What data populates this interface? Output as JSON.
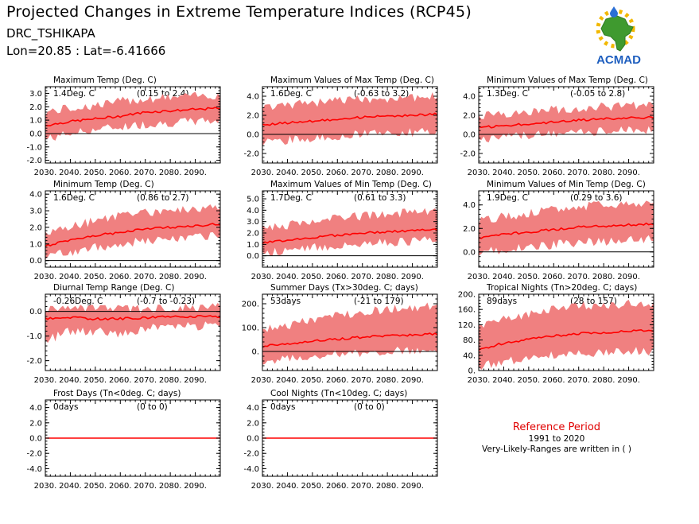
{
  "header": {
    "title": "Projected Changes in Extreme Temperature Indices (RCP45)",
    "location": "DRC_TSHIKAPA",
    "coordinates": "Lon=20.85 : Lat=-6.41666"
  },
  "logo": {
    "text": "ACMAD",
    "icon": "africa-map-logo"
  },
  "reference": {
    "title": "Reference Period",
    "years": "1991 to 2020",
    "note": "Very-Likely-Ranges are written in ( )"
  },
  "colors": {
    "band": "#f08080",
    "line": "#ff0000",
    "zero": "#000000",
    "ref_title": "#e00000"
  },
  "chart_data": [
    {
      "type": "area",
      "title": "Maximum Temp (Deg. C)",
      "summary": "1.4Deg. C",
      "range": "(0.15 to 2.4)",
      "xlim": [
        2030,
        2100
      ],
      "ylim": [
        -2.2,
        3.5
      ],
      "yticks": [
        -2.0,
        -1.0,
        0.0,
        1.0,
        2.0,
        3.0
      ],
      "yticklabels": [
        "-2.0",
        "-1.0",
        "0.0",
        "1.0",
        "2.0",
        "3.0"
      ],
      "x": [
        2030,
        2040,
        2050,
        2060,
        2070,
        2080,
        2090,
        2100
      ],
      "median": [
        0.6,
        0.9,
        1.1,
        1.3,
        1.6,
        1.7,
        1.8,
        1.9
      ],
      "low": [
        -0.4,
        0.0,
        0.3,
        0.5,
        0.7,
        0.8,
        0.9,
        1.0
      ],
      "high": [
        1.6,
        1.9,
        2.1,
        2.4,
        2.6,
        2.7,
        2.8,
        2.9
      ]
    },
    {
      "type": "area",
      "title": "Maximum Values of Max Temp (Deg. C)",
      "summary": "1.6Deg. C",
      "range": "(-0.63 to 3.2)",
      "xlim": [
        2030,
        2100
      ],
      "ylim": [
        -3.0,
        5.0
      ],
      "yticks": [
        -2.0,
        0.0,
        2.0,
        4.0
      ],
      "yticklabels": [
        "-2.0",
        "0.0",
        "2.0",
        "4.0"
      ],
      "x": [
        2030,
        2040,
        2050,
        2060,
        2070,
        2080,
        2090,
        2100
      ],
      "median": [
        1.0,
        1.2,
        1.4,
        1.6,
        1.8,
        1.9,
        2.0,
        2.1
      ],
      "low": [
        -0.8,
        -0.6,
        -0.4,
        -0.2,
        0.0,
        0.1,
        0.2,
        0.3
      ],
      "high": [
        2.8,
        3.0,
        3.3,
        3.5,
        3.7,
        3.8,
        3.9,
        4.0
      ]
    },
    {
      "type": "area",
      "title": "Minimum Values of Max Temp (Deg. C)",
      "summary": "1.3Deg. C",
      "range": "(-0.05 to 2.8)",
      "xlim": [
        2030,
        2100
      ],
      "ylim": [
        -3.0,
        5.0
      ],
      "yticks": [
        -2.0,
        0.0,
        2.0,
        4.0
      ],
      "yticklabels": [
        "-2.0",
        "0.0",
        "2.0",
        "4.0"
      ],
      "x": [
        2030,
        2040,
        2050,
        2060,
        2070,
        2080,
        2090,
        2100
      ],
      "median": [
        0.7,
        0.9,
        1.1,
        1.3,
        1.5,
        1.6,
        1.7,
        1.8
      ],
      "low": [
        -0.5,
        -0.3,
        -0.1,
        0.1,
        0.2,
        0.3,
        0.4,
        0.5
      ],
      "high": [
        2.0,
        2.2,
        2.4,
        2.6,
        2.8,
        2.9,
        3.0,
        3.1
      ]
    },
    {
      "type": "area",
      "title": "Minimum Temp (Deg. C)",
      "summary": "1.6Deg. C",
      "range": "(0.86 to 2.7)",
      "xlim": [
        2030,
        2100
      ],
      "ylim": [
        -0.4,
        4.2
      ],
      "yticks": [
        0.0,
        1.0,
        2.0,
        3.0,
        4.0
      ],
      "yticklabels": [
        "0.0",
        "1.0",
        "2.0",
        "3.0",
        "4.0"
      ],
      "x": [
        2030,
        2040,
        2050,
        2060,
        2070,
        2080,
        2090,
        2100
      ],
      "median": [
        0.9,
        1.2,
        1.5,
        1.7,
        1.9,
        2.0,
        2.1,
        2.2
      ],
      "low": [
        0.3,
        0.5,
        0.8,
        1.0,
        1.2,
        1.3,
        1.4,
        1.5
      ],
      "high": [
        1.6,
        2.0,
        2.4,
        2.7,
        2.9,
        3.0,
        3.1,
        3.2
      ]
    },
    {
      "type": "area",
      "title": "Maximum Values of Min Temp (Deg. C)",
      "summary": "1.7Deg. C",
      "range": "(0.61 to 3.3)",
      "xlim": [
        2030,
        2100
      ],
      "ylim": [
        -1.0,
        5.7
      ],
      "yticks": [
        0.0,
        1.0,
        2.0,
        3.0,
        4.0,
        5.0
      ],
      "yticklabels": [
        "0.0",
        "1.0",
        "2.0",
        "3.0",
        "4.0",
        "5.0"
      ],
      "x": [
        2030,
        2040,
        2050,
        2060,
        2070,
        2080,
        2090,
        2100
      ],
      "median": [
        1.1,
        1.4,
        1.6,
        1.8,
        2.0,
        2.1,
        2.2,
        2.3
      ],
      "low": [
        0.3,
        0.5,
        0.7,
        0.9,
        1.1,
        1.2,
        1.3,
        1.4
      ],
      "high": [
        2.3,
        2.7,
        3.0,
        3.3,
        3.5,
        3.7,
        3.8,
        3.9
      ]
    },
    {
      "type": "area",
      "title": "Minimum Values of Min Temp (Deg. C)",
      "summary": "1.9Deg. C",
      "range": "(0.29 to 3.6)",
      "xlim": [
        2030,
        2100
      ],
      "ylim": [
        -1.3,
        5.2
      ],
      "yticks": [
        0.0,
        2.0,
        4.0
      ],
      "yticklabels": [
        "0.0",
        "2.0",
        "4.0"
      ],
      "x": [
        2030,
        2040,
        2050,
        2060,
        2070,
        2080,
        2090,
        2100
      ],
      "median": [
        1.2,
        1.5,
        1.7,
        1.9,
        2.1,
        2.2,
        2.3,
        2.4
      ],
      "low": [
        0.0,
        0.2,
        0.4,
        0.6,
        0.8,
        0.9,
        1.0,
        1.1
      ],
      "high": [
        2.6,
        3.0,
        3.3,
        3.6,
        3.8,
        4.0,
        4.1,
        4.2
      ]
    },
    {
      "type": "area",
      "title": "Diurnal Temp Range (Deg. C)",
      "summary": "-0.26Deg. C",
      "range": "(-0.7 to -0.23)",
      "xlim": [
        2030,
        2100
      ],
      "ylim": [
        -2.4,
        0.7
      ],
      "yticks": [
        -2.0,
        -1.0,
        0.0
      ],
      "yticklabels": [
        "-2.0",
        "-1.0",
        "0.0"
      ],
      "x": [
        2030,
        2040,
        2050,
        2060,
        2070,
        2080,
        2090,
        2100
      ],
      "median": [
        -0.3,
        -0.25,
        -0.3,
        -0.3,
        -0.25,
        -0.2,
        -0.2,
        -0.2
      ],
      "low": [
        -1.2,
        -0.8,
        -0.8,
        -0.9,
        -0.7,
        -0.6,
        -0.6,
        -0.5
      ],
      "high": [
        0.05,
        0.1,
        0.1,
        0.1,
        0.1,
        0.15,
        0.15,
        0.2
      ]
    },
    {
      "type": "area",
      "title": "Summer Days (Tx>30deg. C; days)",
      "summary": "53days",
      "range": "(-21 to 179)",
      "xlim": [
        2030,
        2100
      ],
      "ylim": [
        -80,
        240
      ],
      "yticks": [
        0,
        100,
        200
      ],
      "yticklabels": [
        "0.",
        "100.",
        "200."
      ],
      "x": [
        2030,
        2040,
        2050,
        2060,
        2070,
        2080,
        2090,
        2100
      ],
      "median": [
        22,
        32,
        42,
        52,
        60,
        65,
        70,
        75
      ],
      "low": [
        -40,
        -30,
        -20,
        -12,
        -5,
        0,
        5,
        10
      ],
      "high": [
        90,
        110,
        130,
        150,
        165,
        175,
        185,
        195
      ]
    },
    {
      "type": "area",
      "title": "Tropical Nights (Tn>20deg. C; days)",
      "summary": "89days",
      "range": "(28 to 157)",
      "xlim": [
        2030,
        2100
      ],
      "ylim": [
        0,
        200
      ],
      "yticks": [
        0,
        40,
        80,
        120,
        160,
        200
      ],
      "yticklabels": [
        "0.",
        "40.",
        "80.",
        "120.",
        "160.",
        "200."
      ],
      "x": [
        2030,
        2040,
        2050,
        2060,
        2070,
        2080,
        2090,
        2100
      ],
      "median": [
        55,
        72,
        82,
        90,
        97,
        100,
        103,
        106
      ],
      "low": [
        10,
        22,
        32,
        40,
        45,
        48,
        50,
        52
      ],
      "high": [
        110,
        135,
        150,
        160,
        168,
        172,
        175,
        178
      ]
    },
    {
      "type": "area",
      "title": "Frost Days (Tn<0deg. C; days)",
      "summary": "0days",
      "range": "(0 to 0)",
      "xlim": [
        2030,
        2100
      ],
      "ylim": [
        -5.0,
        5.0
      ],
      "yticks": [
        -4.0,
        -2.0,
        0.0,
        2.0,
        4.0
      ],
      "yticklabels": [
        "-4.0",
        "-2.0",
        "0.0",
        "2.0",
        "4.0"
      ],
      "x": [
        2030,
        2040,
        2050,
        2060,
        2070,
        2080,
        2090,
        2100
      ],
      "median": [
        0,
        0,
        0,
        0,
        0,
        0,
        0,
        0
      ],
      "low": [
        0,
        0,
        0,
        0,
        0,
        0,
        0,
        0
      ],
      "high": [
        0,
        0,
        0,
        0,
        0,
        0,
        0,
        0
      ]
    },
    {
      "type": "area",
      "title": "Cool Nights (Tn<10deg. C; days)",
      "summary": "0days",
      "range": "(0 to 0)",
      "xlim": [
        2030,
        2100
      ],
      "ylim": [
        -5.0,
        5.0
      ],
      "yticks": [
        -4.0,
        -2.0,
        0.0,
        2.0,
        4.0
      ],
      "yticklabels": [
        "-4.0",
        "-2.0",
        "0.0",
        "2.0",
        "4.0"
      ],
      "x": [
        2030,
        2040,
        2050,
        2060,
        2070,
        2080,
        2090,
        2100
      ],
      "median": [
        0,
        0,
        0,
        0,
        0,
        0,
        0,
        0
      ],
      "low": [
        0,
        0,
        0,
        0,
        0,
        0,
        0,
        0
      ],
      "high": [
        0,
        0,
        0,
        0,
        0,
        0,
        0,
        0
      ]
    }
  ],
  "xticklabels": [
    "2030.",
    "2040.",
    "2050.",
    "2060.",
    "2070.",
    "2080.",
    "2090."
  ]
}
